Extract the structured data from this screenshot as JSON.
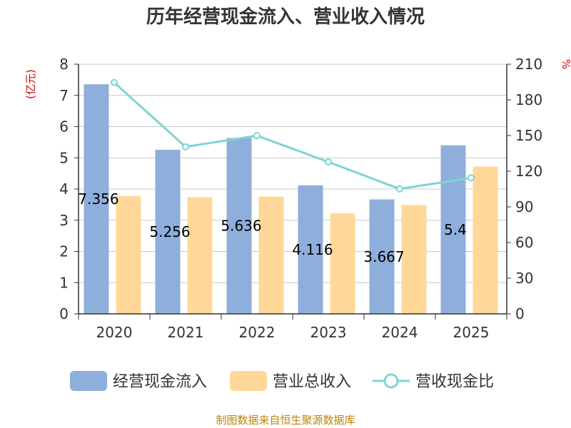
{
  "chart_data": {
    "type": "bar",
    "title": "历年经营现金流入、营业收入情况",
    "categories": [
      "2020",
      "2021",
      "2022",
      "2023",
      "2024",
      "2025"
    ],
    "series": [
      {
        "name": "经营现金流入",
        "type": "bar",
        "axis": "left",
        "color": "#8eaedb",
        "values": [
          7.356,
          5.256,
          5.636,
          4.116,
          3.667,
          5.4
        ],
        "labels": [
          "7.356",
          "5.256",
          "5.636",
          "4.116",
          "3.667",
          "5.4"
        ]
      },
      {
        "name": "营业总收入",
        "type": "bar",
        "axis": "left",
        "color": "#ffd899",
        "values": [
          3.78,
          3.74,
          3.76,
          3.22,
          3.49,
          4.72
        ]
      },
      {
        "name": "营收现金比",
        "type": "line",
        "axis": "right",
        "color": "#80d3d6",
        "values": [
          194.6,
          140.5,
          149.9,
          127.8,
          105.1,
          114.4
        ]
      }
    ],
    "y_left": {
      "unit": "(亿元)",
      "ylim": [
        0,
        8
      ],
      "ticks": [
        "0",
        "1",
        "2",
        "3",
        "4",
        "5",
        "6",
        "7",
        "8"
      ]
    },
    "y_right": {
      "unit": "%",
      "ylim": [
        0,
        210
      ],
      "ticks": [
        "0",
        "30",
        "60",
        "90",
        "120",
        "150",
        "180",
        "210"
      ]
    },
    "grid": true,
    "legend_position": "bottom"
  },
  "source": "制图数据来自恒生聚源数据库"
}
